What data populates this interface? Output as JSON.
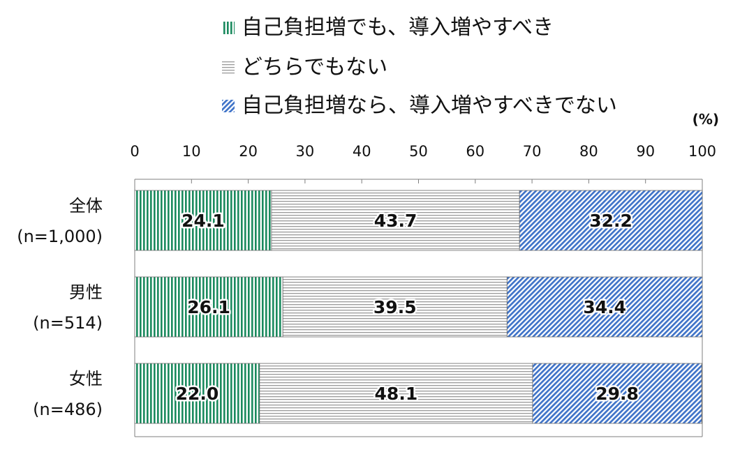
{
  "chart_data": {
    "type": "bar",
    "orientation": "horizontal",
    "stacked": true,
    "unit": "(%)",
    "xlim": [
      0,
      100
    ],
    "ticks": [
      "0",
      "10",
      "20",
      "30",
      "40",
      "50",
      "60",
      "70",
      "80",
      "90",
      "100"
    ],
    "categories": [
      {
        "name": "全体",
        "n": "(n=1,000)"
      },
      {
        "name": "男性",
        "n": "(n=514)"
      },
      {
        "name": "女性",
        "n": "(n=486)"
      }
    ],
    "series": [
      {
        "name": "自己負担増でも、導入増やすべき",
        "color": "#1a8a5e",
        "pattern": "vertical-stripes",
        "values": [
          24.1,
          26.1,
          22.0
        ]
      },
      {
        "name": "どちらでもない",
        "color": "#9a9a9a",
        "pattern": "horizontal-stripes",
        "values": [
          43.7,
          39.5,
          48.1
        ]
      },
      {
        "name": "自己負担増なら、導入増やすべきでない",
        "color": "#3f73c8",
        "pattern": "diagonal-stripes",
        "values": [
          32.2,
          34.4,
          29.8
        ]
      }
    ],
    "legend_position": "top",
    "grid": false
  }
}
